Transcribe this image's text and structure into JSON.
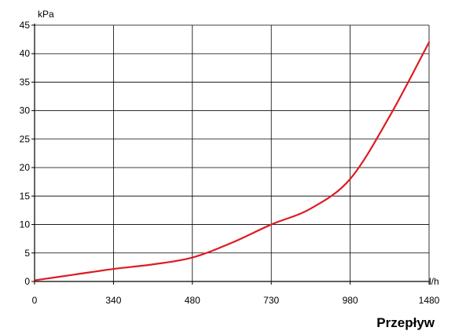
{
  "chart_data": {
    "type": "line",
    "title": "",
    "xlabel": "Przepływ",
    "ylabel": "",
    "x_unit": "l/h",
    "y_unit": "kPa",
    "x_ticks": [
      "0",
      "340",
      "480",
      "730",
      "980",
      "1480"
    ],
    "y_ticks": [
      "0",
      "5",
      "10",
      "15",
      "20",
      "25",
      "30",
      "35",
      "40",
      "45"
    ],
    "ylim": [
      0,
      45
    ],
    "grid": true,
    "series": [
      {
        "color": "#dd1c22",
        "points": [
          {
            "tick": 0.0,
            "y": 0.2
          },
          {
            "tick": 0.5,
            "y": 1.2
          },
          {
            "tick": 1.0,
            "y": 2.2
          },
          {
            "tick": 1.5,
            "y": 3.0
          },
          {
            "tick": 2.0,
            "y": 4.2
          },
          {
            "tick": 2.5,
            "y": 6.8
          },
          {
            "tick": 3.0,
            "y": 10.0
          },
          {
            "tick": 3.5,
            "y": 12.8
          },
          {
            "tick": 4.0,
            "y": 18.0
          },
          {
            "tick": 4.5,
            "y": 29.0
          },
          {
            "tick": 5.0,
            "y": 42.0
          }
        ]
      }
    ]
  }
}
